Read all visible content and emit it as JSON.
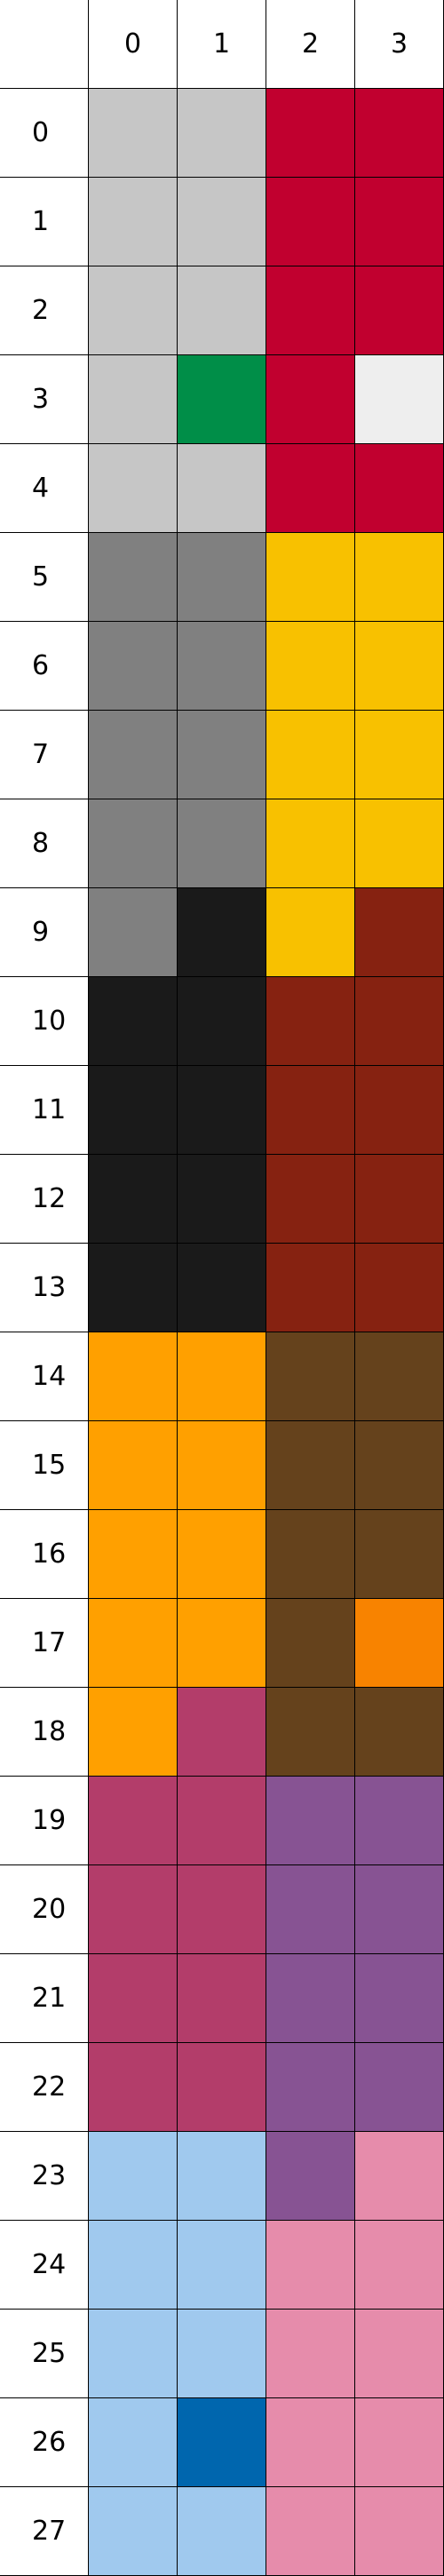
{
  "palette": {
    "light_gray": "#C6C6C6",
    "crimson": "#C1002F",
    "green": "#008E48",
    "white_gray": "#EEEEEE",
    "gray": "#808080",
    "yellow": "#F8C100",
    "maroon": "#862211",
    "black": "#1A1A1A",
    "orange": "#FFA000",
    "brown": "#65421C",
    "deep_orange": "#F88300",
    "magenta": "#B33D6A",
    "purple": "#875393",
    "light_blue": "#A0C9EE",
    "pink": "#E68CAB",
    "blue": "#0066AE"
  },
  "columns": [
    "0",
    "1",
    "2",
    "3"
  ],
  "rows": [
    {
      "label": "0",
      "cells": [
        "light_gray",
        "light_gray",
        "crimson",
        "crimson"
      ]
    },
    {
      "label": "1",
      "cells": [
        "light_gray",
        "light_gray",
        "crimson",
        "crimson"
      ]
    },
    {
      "label": "2",
      "cells": [
        "light_gray",
        "light_gray",
        "crimson",
        "crimson"
      ]
    },
    {
      "label": "3",
      "cells": [
        "light_gray",
        "green",
        "crimson",
        "white_gray"
      ]
    },
    {
      "label": "4",
      "cells": [
        "light_gray",
        "light_gray",
        "crimson",
        "crimson"
      ]
    },
    {
      "label": "5",
      "cells": [
        "gray",
        "gray",
        "yellow",
        "yellow"
      ]
    },
    {
      "label": "6",
      "cells": [
        "gray",
        "gray",
        "yellow",
        "yellow"
      ]
    },
    {
      "label": "7",
      "cells": [
        "gray",
        "gray",
        "yellow",
        "yellow"
      ]
    },
    {
      "label": "8",
      "cells": [
        "gray",
        "gray",
        "yellow",
        "yellow"
      ]
    },
    {
      "label": "9",
      "cells": [
        "gray",
        "black",
        "yellow",
        "maroon"
      ]
    },
    {
      "label": "10",
      "cells": [
        "black",
        "black",
        "maroon",
        "maroon"
      ]
    },
    {
      "label": "11",
      "cells": [
        "black",
        "black",
        "maroon",
        "maroon"
      ]
    },
    {
      "label": "12",
      "cells": [
        "black",
        "black",
        "maroon",
        "maroon"
      ]
    },
    {
      "label": "13",
      "cells": [
        "black",
        "black",
        "maroon",
        "maroon"
      ]
    },
    {
      "label": "14",
      "cells": [
        "orange",
        "orange",
        "brown",
        "brown"
      ]
    },
    {
      "label": "15",
      "cells": [
        "orange",
        "orange",
        "brown",
        "brown"
      ]
    },
    {
      "label": "16",
      "cells": [
        "orange",
        "orange",
        "brown",
        "brown"
      ]
    },
    {
      "label": "17",
      "cells": [
        "orange",
        "orange",
        "brown",
        "deep_orange"
      ]
    },
    {
      "label": "18",
      "cells": [
        "orange",
        "magenta",
        "brown",
        "brown"
      ]
    },
    {
      "label": "19",
      "cells": [
        "magenta",
        "magenta",
        "purple",
        "purple"
      ]
    },
    {
      "label": "20",
      "cells": [
        "magenta",
        "magenta",
        "purple",
        "purple"
      ]
    },
    {
      "label": "21",
      "cells": [
        "magenta",
        "magenta",
        "purple",
        "purple"
      ]
    },
    {
      "label": "22",
      "cells": [
        "magenta",
        "magenta",
        "purple",
        "purple"
      ]
    },
    {
      "label": "23",
      "cells": [
        "light_blue",
        "light_blue",
        "purple",
        "pink"
      ]
    },
    {
      "label": "24",
      "cells": [
        "light_blue",
        "light_blue",
        "pink",
        "pink"
      ]
    },
    {
      "label": "25",
      "cells": [
        "light_blue",
        "light_blue",
        "pink",
        "pink"
      ]
    },
    {
      "label": "26",
      "cells": [
        "light_blue",
        "blue",
        "pink",
        "pink"
      ]
    },
    {
      "label": "27",
      "cells": [
        "light_blue",
        "light_blue",
        "pink",
        "pink"
      ]
    }
  ]
}
